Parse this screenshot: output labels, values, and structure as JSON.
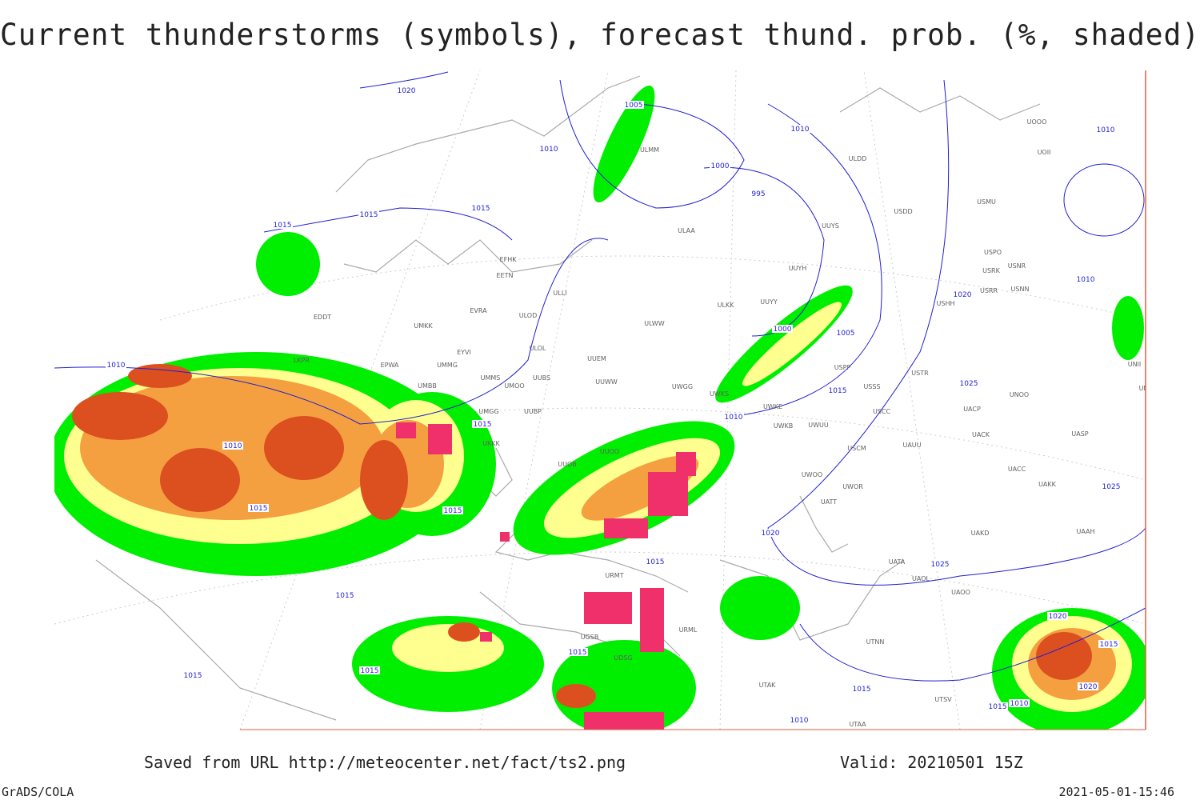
{
  "header": {
    "title": "Current thunderstorms (symbols), forecast thund. prob. (%, shaded)"
  },
  "footer": {
    "saved_from": "Saved from URL http://meteocenter.net/fact/ts2.png",
    "valid": "Valid: 20210501 15Z",
    "credit": "GrADS/COLA",
    "timestamp": "2021-05-01-15:46"
  },
  "isobar_labels": [
    "1020",
    "1005",
    "1010",
    "1010",
    "1000",
    "995",
    "1015",
    "1015",
    "1015",
    "1010",
    "1010",
    "1015",
    "1015",
    "1015",
    "1010",
    "1000",
    "1005",
    "1015",
    "1020",
    "1025",
    "1010",
    "1010",
    "1025",
    "1020",
    "1025",
    "1015",
    "1015",
    "1015",
    "1015",
    "1015",
    "1015",
    "1010",
    "1020",
    "1015",
    "1020",
    "1015",
    "1010"
  ],
  "station_labels": [
    "ULMM",
    "ULDD",
    "UOOO",
    "UOII",
    "USMU",
    "USDD",
    "ULAA",
    "UUYS",
    "UUYH",
    "EFHK",
    "EETN",
    "ULLI",
    "ULKK",
    "UUYY",
    "USHH",
    "EVRA",
    "ULOD",
    "ULWW",
    "UMKK",
    "EYVI",
    "ULOL",
    "UUEM",
    "EDDT",
    "EPWA",
    "UMMG",
    "LKPR",
    "UMMS",
    "UMOO",
    "UUBS",
    "UUWW",
    "UWGG",
    "UWKS",
    "USPP",
    "USTR",
    "USSS",
    "UNOO",
    "UNBB",
    "UMBB",
    "UMGG",
    "UUBP",
    "UWKE",
    "UWKB",
    "UWUU",
    "USCC",
    "UACP",
    "UACK",
    "UASP",
    "UKKK",
    "UUOO",
    "USCM",
    "UAUU",
    "UUOB",
    "UWOO",
    "UWOR",
    "UACC",
    "UAKK",
    "UATT",
    "UAKD",
    "UAAH",
    "UATA",
    "UAOL",
    "UAOO",
    "URMT",
    "URML",
    "UTNN",
    "UTSV",
    "UTAK",
    "UTAA",
    "UGSB",
    "UDSG",
    "USPO",
    "USRK",
    "USNR",
    "USRR",
    "USNN",
    "UNII"
  ]
}
